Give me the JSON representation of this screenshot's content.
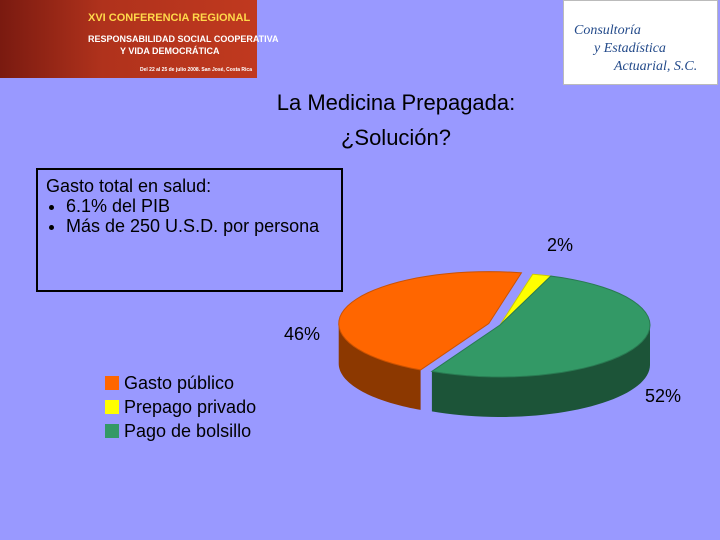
{
  "header": {
    "event_lines": [
      "XVI CONFERENCIA REGIONAL",
      "RESPONSABILIDAD SOCIAL COOPERATIVA",
      "Y VIDA DEMOCRÁTICA",
      "Del 22 al 25 de julio 2008. San José, Costa Rica"
    ],
    "company_lines": [
      "Consultoría",
      "y Estadística",
      "Actuarial, S.C."
    ]
  },
  "note": {
    "heading": "Gasto total en salud:",
    "bullets": [
      "6.1% del PIB",
      "Más de 250 U.S.D. por persona"
    ]
  },
  "chart_data": {
    "type": "pie",
    "title": [
      "La Medicina Prepagada:",
      "¿Solución?"
    ],
    "categories": [
      "Gasto público",
      "Prepago privado",
      "Pago de bolsillo"
    ],
    "values": [
      46,
      2,
      52
    ],
    "value_labels": [
      "46%",
      "2%",
      "52%"
    ],
    "colors": [
      "#ff6600",
      "#ffff00",
      "#339966"
    ],
    "legend": "lower-left"
  }
}
